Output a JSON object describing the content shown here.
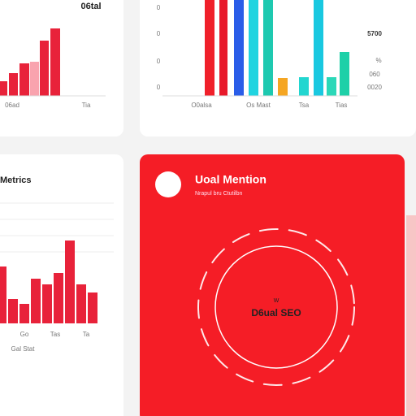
{
  "top_left_card": {
    "title": "06tal",
    "labels": [
      "06ad",
      "Tia"
    ]
  },
  "top_middle_card": {
    "axis_labels": [
      "0",
      "0",
      "0",
      "0"
    ],
    "labels": [
      "O0alsa",
      "Os Mast",
      "Tsa",
      "Tias"
    ],
    "side_labels": [
      "5700",
      "%",
      "060",
      "0020"
    ]
  },
  "metrics_card": {
    "title": "Metrics",
    "labels": [
      "Go",
      "Tas",
      "Ta"
    ],
    "footer": "Gal Stat"
  },
  "mention_card": {
    "title": "Uoal Mention",
    "subtitle": "Nrapul bru Ctutilbn",
    "center_small": "W",
    "center_title": "D6ual SEO"
  }
}
